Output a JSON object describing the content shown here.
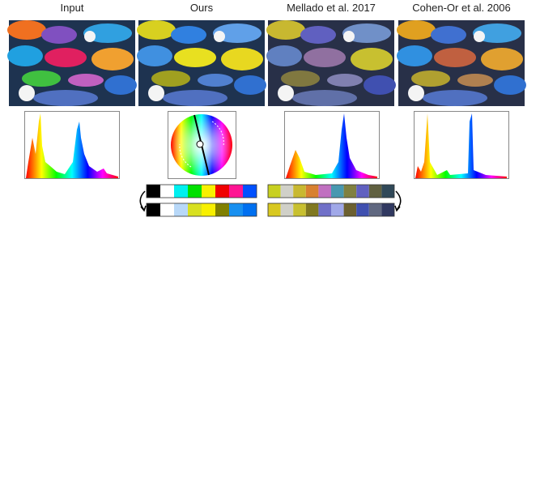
{
  "columns": [
    {
      "title": "Input"
    },
    {
      "title": "Ours"
    },
    {
      "title": "Mellado et al. 2017"
    },
    {
      "title": "Cohen-Or et al. 2006"
    }
  ],
  "palettes": {
    "ours": [
      [
        "#000000",
        "#ffffff",
        "#00f0f0",
        "#00e000",
        "#f8f000",
        "#f00000",
        "#ff1493",
        "#0050ff"
      ],
      [
        "#000000",
        "#ffffff",
        "#b8d8f8",
        "#d8e020",
        "#f8f000",
        "#808000",
        "#1890f0",
        "#0070f0"
      ]
    ],
    "mellado": [
      [
        "#c8d020",
        "#d0d0c8",
        "#c8b830",
        "#d88030",
        "#c070c0",
        "#4898b0",
        "#808040",
        "#6060c0",
        "#606040",
        "#304858"
      ],
      [
        "#d8c820",
        "#d0d0c8",
        "#c8c030",
        "#807820",
        "#7070c8",
        "#a0a8e8",
        "#6c6030",
        "#4050b0",
        "#606880",
        "#303860"
      ]
    ]
  }
}
